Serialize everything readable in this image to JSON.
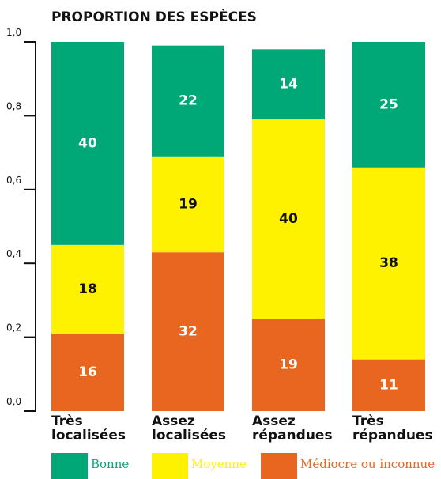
{
  "chart_data": {
    "type": "stacked-bar",
    "title": "PROPORTION DES ESPÈCES",
    "categories": [
      "Très localisées",
      "Assez localisées",
      "Assez répandues",
      "Très répandues"
    ],
    "series": [
      {
        "name": "Médiocre ou inconnue",
        "color": "#e8661f",
        "values": [
          0.21,
          0.43,
          0.25,
          0.14
        ],
        "counts": [
          16,
          32,
          19,
          11
        ]
      },
      {
        "name": "Moyenne",
        "color": "#fff200",
        "values": [
          0.24,
          0.26,
          0.54,
          0.52
        ],
        "counts": [
          18,
          19,
          40,
          38
        ]
      },
      {
        "name": "Bonne",
        "color": "#00a878",
        "values": [
          0.55,
          0.3,
          0.19,
          0.34
        ],
        "counts": [
          40,
          22,
          14,
          25
        ]
      }
    ],
    "legend_order": [
      2,
      1,
      0
    ],
    "ylim": [
      0,
      1
    ],
    "yticks": [
      {
        "value": 0,
        "label": "0,0"
      },
      {
        "value": 0.2,
        "label": "0,2"
      },
      {
        "value": 0.4,
        "label": "0,4"
      },
      {
        "value": 0.6,
        "label": "0,6"
      },
      {
        "value": 0.8,
        "label": "0,8"
      },
      {
        "value": 1,
        "label": "1,0"
      }
    ]
  }
}
